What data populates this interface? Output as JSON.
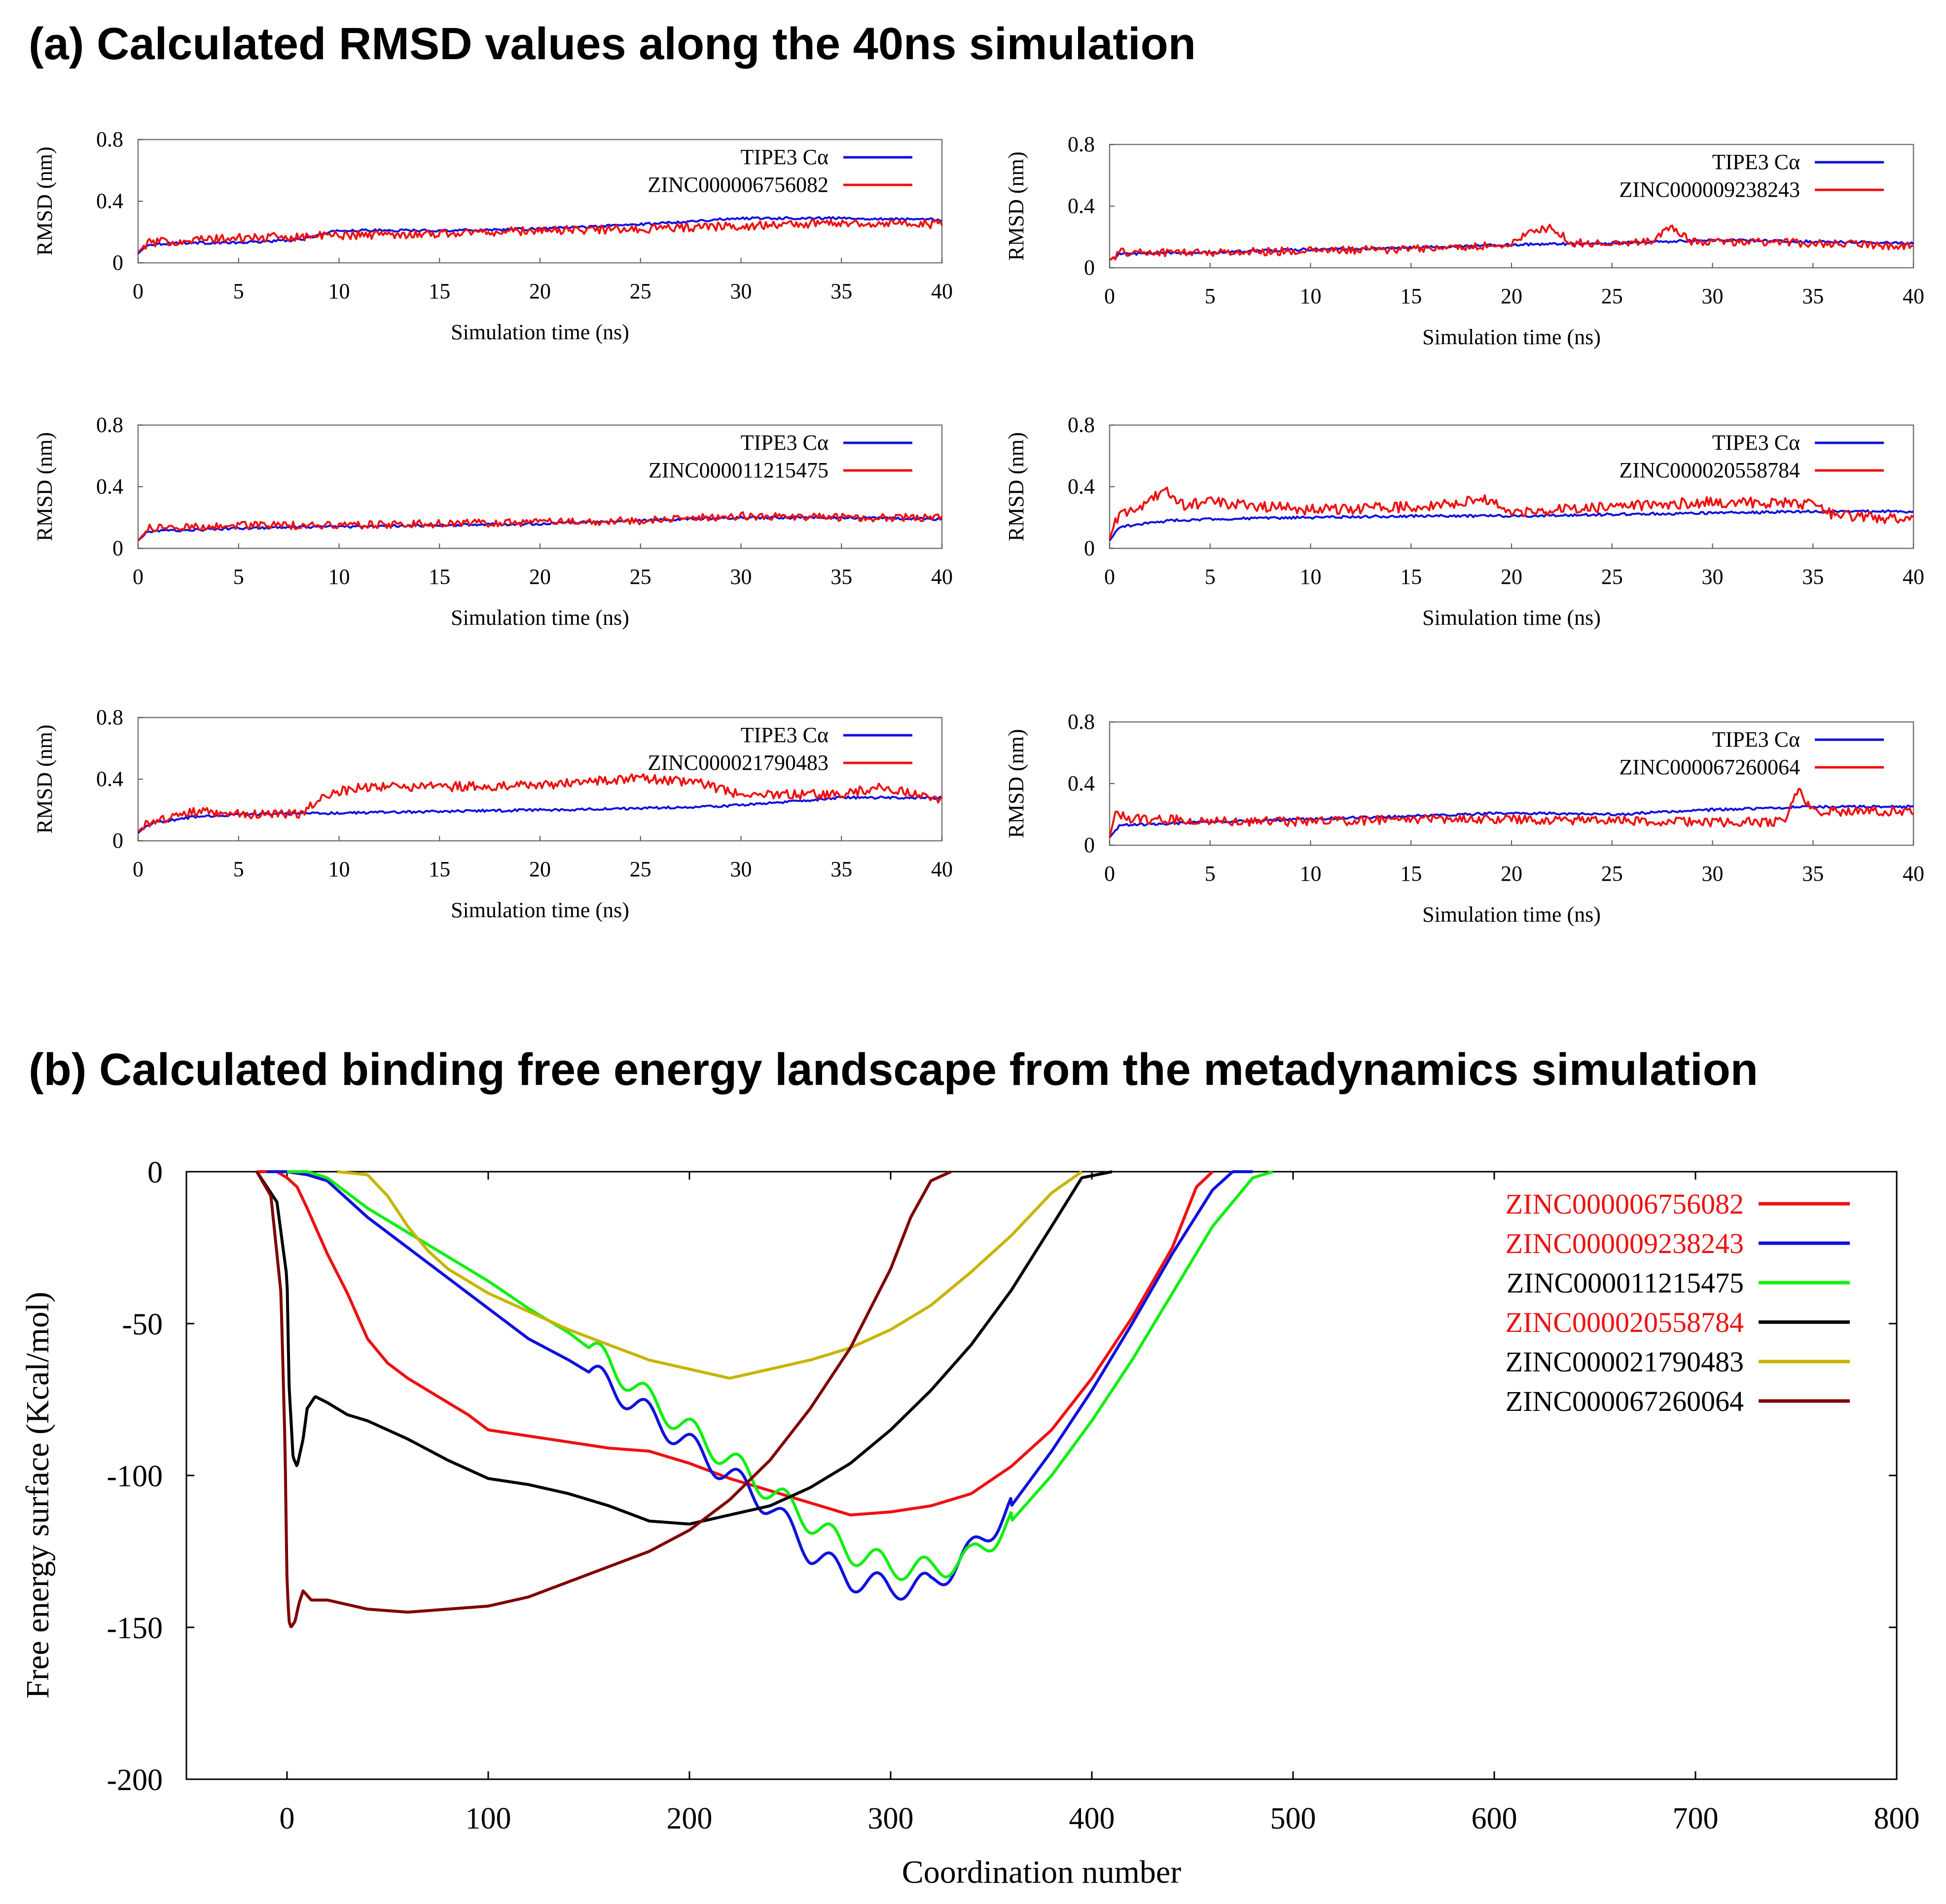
{
  "panel_a": {
    "title": "(a)  Calculated RMSD values along the 40ns simulation"
  },
  "panel_b": {
    "title": "(b)  Calculated binding free energy landscape from the metadynamics simulation"
  },
  "colors": {
    "red": "#ee1111",
    "blue": "#1111dd",
    "green": "#11ee11",
    "black": "#000000",
    "olive": "#c8b400",
    "maroon": "#800000"
  },
  "chart_data": [
    {
      "id": "rmsd-1",
      "type": "line",
      "xlabel": "Simulation time (ns)",
      "ylabel": "RMSD (nm)",
      "xlim": [
        0,
        40
      ],
      "ylim": [
        0,
        0.8
      ],
      "xticks": [
        "0",
        "5",
        "10",
        "15",
        "20",
        "25",
        "30",
        "35",
        "40"
      ],
      "yticks": [
        "0",
        "0.4",
        "0.8"
      ],
      "series": [
        {
          "name": "TIPE3 Cα",
          "color": "#1111dd",
          "noise": 0.008,
          "x": [
            0,
            0.5,
            2,
            5,
            8,
            10,
            15,
            20,
            25,
            30,
            35,
            40
          ],
          "y": [
            0.06,
            0.12,
            0.13,
            0.13,
            0.15,
            0.21,
            0.21,
            0.22,
            0.25,
            0.29,
            0.29,
            0.28
          ]
        },
        {
          "name": "ZINC000006756082",
          "color": "#ee1111",
          "noise": 0.028,
          "x": [
            0,
            0.5,
            3,
            5,
            8,
            10,
            15,
            20,
            25,
            30,
            35,
            40
          ],
          "y": [
            0.07,
            0.13,
            0.15,
            0.16,
            0.17,
            0.18,
            0.19,
            0.21,
            0.22,
            0.24,
            0.26,
            0.25
          ]
        }
      ]
    },
    {
      "id": "rmsd-2",
      "type": "line",
      "xlabel": "Simulation time (ns)",
      "ylabel": "RMSD (nm)",
      "xlim": [
        0,
        40
      ],
      "ylim": [
        0,
        0.8
      ],
      "xticks": [
        "0",
        "5",
        "10",
        "15",
        "20",
        "25",
        "30",
        "35",
        "40"
      ],
      "yticks": [
        "0",
        "0.4",
        "0.8"
      ],
      "series": [
        {
          "name": "TIPE3 Cα",
          "color": "#1111dd",
          "noise": 0.008,
          "x": [
            0,
            0.5,
            5,
            10,
            15,
            20,
            25,
            30,
            35,
            40
          ],
          "y": [
            0.05,
            0.09,
            0.1,
            0.12,
            0.13,
            0.15,
            0.16,
            0.18,
            0.17,
            0.16
          ]
        },
        {
          "name": "ZINC000009238243",
          "color": "#ee1111",
          "noise": 0.026,
          "x": [
            0,
            0.5,
            5,
            10,
            15,
            20,
            21,
            22,
            23,
            25,
            27,
            28,
            29,
            30,
            35,
            40
          ],
          "y": [
            0.05,
            0.1,
            0.1,
            0.11,
            0.12,
            0.15,
            0.24,
            0.26,
            0.16,
            0.16,
            0.18,
            0.26,
            0.17,
            0.17,
            0.16,
            0.14
          ]
        }
      ]
    },
    {
      "id": "rmsd-3",
      "type": "line",
      "xlabel": "Simulation time (ns)",
      "ylabel": "RMSD (nm)",
      "xlim": [
        0,
        40
      ],
      "ylim": [
        0,
        0.8
      ],
      "xticks": [
        "0",
        "5",
        "10",
        "15",
        "20",
        "25",
        "30",
        "35",
        "40"
      ],
      "yticks": [
        "0",
        "0.4",
        "0.8"
      ],
      "series": [
        {
          "name": "TIPE3 Cα",
          "color": "#1111dd",
          "noise": 0.008,
          "x": [
            0,
            0.5,
            5,
            10,
            15,
            20,
            25,
            30,
            35,
            40
          ],
          "y": [
            0.05,
            0.11,
            0.13,
            0.14,
            0.15,
            0.16,
            0.18,
            0.2,
            0.2,
            0.19
          ]
        },
        {
          "name": "ZINC000011215475",
          "color": "#ee1111",
          "noise": 0.025,
          "x": [
            0,
            0.5,
            5,
            10,
            15,
            20,
            25,
            30,
            35,
            40
          ],
          "y": [
            0.05,
            0.13,
            0.15,
            0.15,
            0.16,
            0.17,
            0.18,
            0.21,
            0.2,
            0.2
          ]
        }
      ]
    },
    {
      "id": "rmsd-4",
      "type": "line",
      "xlabel": "Simulation time (ns)",
      "ylabel": "RMSD (nm)",
      "xlim": [
        0,
        40
      ],
      "ylim": [
        0,
        0.8
      ],
      "xticks": [
        "0",
        "5",
        "10",
        "15",
        "20",
        "25",
        "30",
        "35",
        "40"
      ],
      "yticks": [
        "0",
        "0.4",
        "0.8"
      ],
      "series": [
        {
          "name": "TIPE3 Cα",
          "color": "#1111dd",
          "noise": 0.008,
          "x": [
            0,
            0.5,
            3,
            5,
            10,
            15,
            20,
            25,
            30,
            35,
            40
          ],
          "y": [
            0.05,
            0.14,
            0.18,
            0.19,
            0.2,
            0.21,
            0.21,
            0.22,
            0.23,
            0.24,
            0.24
          ]
        },
        {
          "name": "ZINC000020558784",
          "color": "#ee1111",
          "noise": 0.035,
          "x": [
            0,
            0.3,
            1,
            2,
            2.7,
            3.5,
            5,
            10,
            15,
            19,
            20,
            25,
            30,
            35,
            36,
            40
          ],
          "y": [
            0.06,
            0.18,
            0.25,
            0.3,
            0.38,
            0.28,
            0.3,
            0.25,
            0.27,
            0.32,
            0.23,
            0.27,
            0.3,
            0.29,
            0.22,
            0.18
          ]
        }
      ]
    },
    {
      "id": "rmsd-5",
      "type": "line",
      "xlabel": "Simulation time (ns)",
      "ylabel": "RMSD (nm)",
      "xlim": [
        0,
        40
      ],
      "ylim": [
        0,
        0.8
      ],
      "xticks": [
        "0",
        "5",
        "10",
        "15",
        "20",
        "25",
        "30",
        "35",
        "40"
      ],
      "yticks": [
        "0",
        "0.4",
        "0.8"
      ],
      "series": [
        {
          "name": "TIPE3 Cα",
          "color": "#1111dd",
          "noise": 0.008,
          "x": [
            0,
            0.5,
            3,
            5,
            10,
            15,
            20,
            25,
            30,
            35,
            40
          ],
          "y": [
            0.05,
            0.11,
            0.16,
            0.17,
            0.18,
            0.19,
            0.2,
            0.21,
            0.23,
            0.28,
            0.28
          ]
        },
        {
          "name": "ZINC000021790483",
          "color": "#ee1111",
          "noise": 0.03,
          "x": [
            0,
            0.5,
            3,
            5,
            8,
            9.5,
            11,
            15,
            20,
            25,
            28,
            30,
            35,
            37,
            40
          ],
          "y": [
            0.06,
            0.12,
            0.19,
            0.17,
            0.17,
            0.3,
            0.35,
            0.35,
            0.36,
            0.41,
            0.37,
            0.3,
            0.3,
            0.35,
            0.26
          ]
        }
      ]
    },
    {
      "id": "rmsd-6",
      "type": "line",
      "xlabel": "Simulation time (ns)",
      "ylabel": "RMSD (nm)",
      "xlim": [
        0,
        40
      ],
      "ylim": [
        0,
        0.8
      ],
      "xticks": [
        "0",
        "5",
        "10",
        "15",
        "20",
        "25",
        "30",
        "35",
        "40"
      ],
      "yticks": [
        "0",
        "0.4",
        "0.8"
      ],
      "series": [
        {
          "name": "TIPE3 Cα",
          "color": "#1111dd",
          "noise": 0.008,
          "x": [
            0,
            0.5,
            5,
            10,
            15,
            20,
            25,
            30,
            35,
            40
          ],
          "y": [
            0.05,
            0.13,
            0.15,
            0.17,
            0.19,
            0.21,
            0.2,
            0.23,
            0.25,
            0.25
          ]
        },
        {
          "name": "ZINC000067260064",
          "color": "#ee1111",
          "noise": 0.03,
          "x": [
            0,
            0.3,
            1,
            5,
            10,
            15,
            20,
            25,
            30,
            33.5,
            34.3,
            35,
            40
          ],
          "y": [
            0.05,
            0.22,
            0.17,
            0.16,
            0.15,
            0.17,
            0.17,
            0.16,
            0.15,
            0.15,
            0.36,
            0.22,
            0.22
          ]
        }
      ]
    },
    {
      "id": "free-energy",
      "type": "line",
      "xlabel": "Coordination number",
      "ylabel": "Free energy surface (Kcal/mol)",
      "xlim": [
        -50,
        800
      ],
      "ylim": [
        -200,
        0
      ],
      "xticks": [
        "0",
        "100",
        "200",
        "300",
        "400",
        "500",
        "600",
        "700",
        "800"
      ],
      "yticks": [
        "-200",
        "-150",
        "-100",
        "-50",
        "0"
      ],
      "series": [
        {
          "name": "ZINC000006756082",
          "name_color": "#ee1111",
          "color": "#ee1111",
          "wave": 0,
          "x": [
            -15,
            -5,
            0,
            5,
            10,
            20,
            30,
            40,
            50,
            60,
            70,
            80,
            90,
            100,
            120,
            140,
            160,
            180,
            200,
            220,
            240,
            260,
            280,
            300,
            320,
            340,
            360,
            380,
            400,
            420,
            440,
            452,
            460
          ],
          "y": [
            0,
            0,
            -2,
            -5,
            -12,
            -27,
            -40,
            -55,
            -63,
            -68,
            -72,
            -76,
            -80,
            -85,
            -87,
            -89,
            -91,
            -92,
            -96,
            -101,
            -105,
            -109,
            -113,
            -112,
            -110,
            -106,
            -97,
            -85,
            -68,
            -48,
            -25,
            -5,
            0
          ]
        },
        {
          "name": "ZINC000009238243",
          "name_color": "#ee1111",
          "color": "#1111dd",
          "wave": 2.5,
          "x": [
            -10,
            0,
            10,
            20,
            40,
            60,
            80,
            100,
            120,
            140,
            160,
            180,
            200,
            220,
            240,
            260,
            280,
            300,
            320,
            340,
            360,
            380,
            400,
            420,
            440,
            460,
            470,
            480
          ],
          "y": [
            0,
            0,
            -1,
            -3,
            -15,
            -25,
            -35,
            -45,
            -55,
            -62,
            -70,
            -80,
            -90,
            -100,
            -110,
            -125,
            -134,
            -137,
            -136,
            -125,
            -110,
            -92,
            -72,
            -50,
            -27,
            -6,
            0,
            0
          ]
        },
        {
          "name": "ZINC000011215475",
          "name_color": "#000000",
          "color": "#11ee11",
          "wave": 2.5,
          "x": [
            0,
            10,
            20,
            40,
            60,
            80,
            100,
            120,
            140,
            160,
            180,
            200,
            220,
            240,
            260,
            280,
            300,
            320,
            340,
            360,
            380,
            400,
            420,
            440,
            460,
            480,
            490
          ],
          "y": [
            0,
            0,
            -2,
            -12,
            -20,
            -28,
            -36,
            -45,
            -53,
            -63,
            -75,
            -85,
            -95,
            -105,
            -115,
            -125,
            -130,
            -131,
            -127,
            -115,
            -100,
            -82,
            -62,
            -40,
            -18,
            -2,
            0
          ]
        },
        {
          "name": "ZINC000020558784",
          "name_color": "#ee1111",
          "color": "#000000",
          "wave": 0,
          "x": [
            -15,
            -5,
            0,
            1,
            3,
            5,
            8,
            10,
            14,
            20,
            30,
            40,
            50,
            60,
            80,
            100,
            120,
            140,
            160,
            180,
            200,
            220,
            240,
            260,
            280,
            300,
            320,
            340,
            360,
            380,
            395,
            410
          ],
          "y": [
            0,
            -10,
            -35,
            -70,
            -94,
            -97,
            -88,
            -78,
            -74,
            -76,
            -80,
            -82,
            -85,
            -88,
            -95,
            -101,
            -103,
            -106,
            -110,
            -115,
            -116,
            -113,
            -110,
            -104,
            -96,
            -85,
            -72,
            -57,
            -39,
            -18,
            -2,
            0
          ]
        },
        {
          "name": "ZINC000021790483",
          "name_color": "#000000",
          "color": "#c8b400",
          "wave": 0,
          "x": [
            25,
            40,
            50,
            60,
            70,
            80,
            100,
            120,
            140,
            160,
            180,
            200,
            220,
            240,
            260,
            280,
            300,
            320,
            340,
            360,
            380,
            395
          ],
          "y": [
            0,
            -1,
            -8,
            -18,
            -26,
            -32,
            -40,
            -46,
            -52,
            -57,
            -62,
            -65,
            -68,
            -65,
            -62,
            -58,
            -52,
            -44,
            -33,
            -21,
            -7,
            0
          ]
        },
        {
          "name": "ZINC000067260064",
          "name_color": "#000000",
          "color": "#800000",
          "wave": 0,
          "x": [
            -15,
            -8,
            -3,
            -1,
            0,
            1,
            2,
            4,
            6,
            8,
            12,
            20,
            40,
            60,
            80,
            100,
            120,
            140,
            160,
            180,
            200,
            220,
            240,
            260,
            280,
            300,
            310,
            320,
            330
          ],
          "y": [
            0,
            -8,
            -40,
            -90,
            -135,
            -148,
            -150,
            -148,
            -142,
            -138,
            -141,
            -141,
            -144,
            -145,
            -144,
            -143,
            -140,
            -135,
            -130,
            -125,
            -118,
            -108,
            -95,
            -78,
            -58,
            -32,
            -15,
            -3,
            0
          ]
        }
      ]
    }
  ]
}
